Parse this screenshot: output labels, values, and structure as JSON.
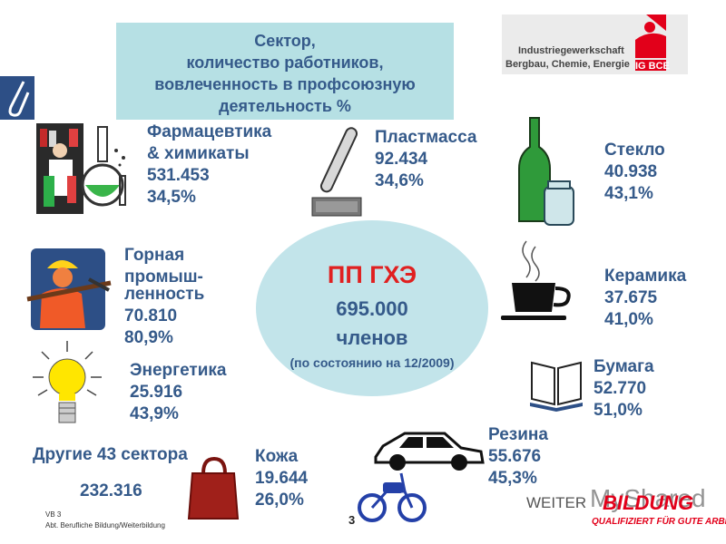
{
  "title": {
    "line1": "Сектор,",
    "line2": "количество работников,",
    "line3": "вовлеченность в профсоюзную",
    "line4": "деятельность %"
  },
  "center": {
    "title": "ПП ГХЭ",
    "count": "695.000",
    "unit": "членов",
    "note": "(по состоянию на 12/2009)"
  },
  "logo": {
    "line1": "Industriegewerkschaft",
    "line2": "Bergbau, Chemie, Energie",
    "brand": "IG BCE"
  },
  "sectors": {
    "pharma": {
      "name1": "Фармацевтика",
      "name2": "& химикаты",
      "count": "531.453",
      "pct": "34,5%"
    },
    "plastic": {
      "name": "Пластмасса",
      "count": "92.434",
      "pct": "34,6%"
    },
    "glass": {
      "name": "Стекло",
      "count": "40.938",
      "pct": "43,1%"
    },
    "mining": {
      "name1": "Горная",
      "name2": "промыш-",
      "name3": "ленность",
      "count": "70.810",
      "pct": "80,9%"
    },
    "ceramics": {
      "name": "Керамика",
      "count": "37.675",
      "pct": "41,0%"
    },
    "energy": {
      "name": "Энергетика",
      "count": "25.916",
      "pct": "43,9%"
    },
    "paper": {
      "name": "Бумага",
      "count": "52.770",
      "pct": "51,0%"
    },
    "rubber": {
      "name": "Резина",
      "count": "55.676",
      "pct": "45,3%"
    },
    "leather": {
      "name": "Кожа",
      "count": "19.644",
      "pct": "26,0%"
    },
    "other": {
      "name": "Другие 43 сектора",
      "count": "232.316"
    }
  },
  "footer": {
    "line1": "VB 3",
    "line2": "Abt. Berufliche Bildung/Weiterbildung",
    "page": "3",
    "brand_prefix": "WEITER",
    "brand_main": "BILDUNG",
    "tagline": "QUALIFIZIERT FÜR GUTE ARBEIT",
    "watermark": "MyShared"
  },
  "colors": {
    "text": "#355a8a",
    "center_title": "#e02020",
    "title_box": "#b6e0e4",
    "ellipse": "#c2e4ea",
    "brand_red": "#e2001a"
  },
  "icons": [
    "paperclip-icon",
    "pharmacist-icon",
    "flask-icon",
    "plastic-tube-icon",
    "bottle-icon",
    "miner-icon",
    "coffee-cup-icon",
    "lightbulb-icon",
    "book-icon",
    "car-icon",
    "motorcycle-icon",
    "handbag-icon"
  ]
}
